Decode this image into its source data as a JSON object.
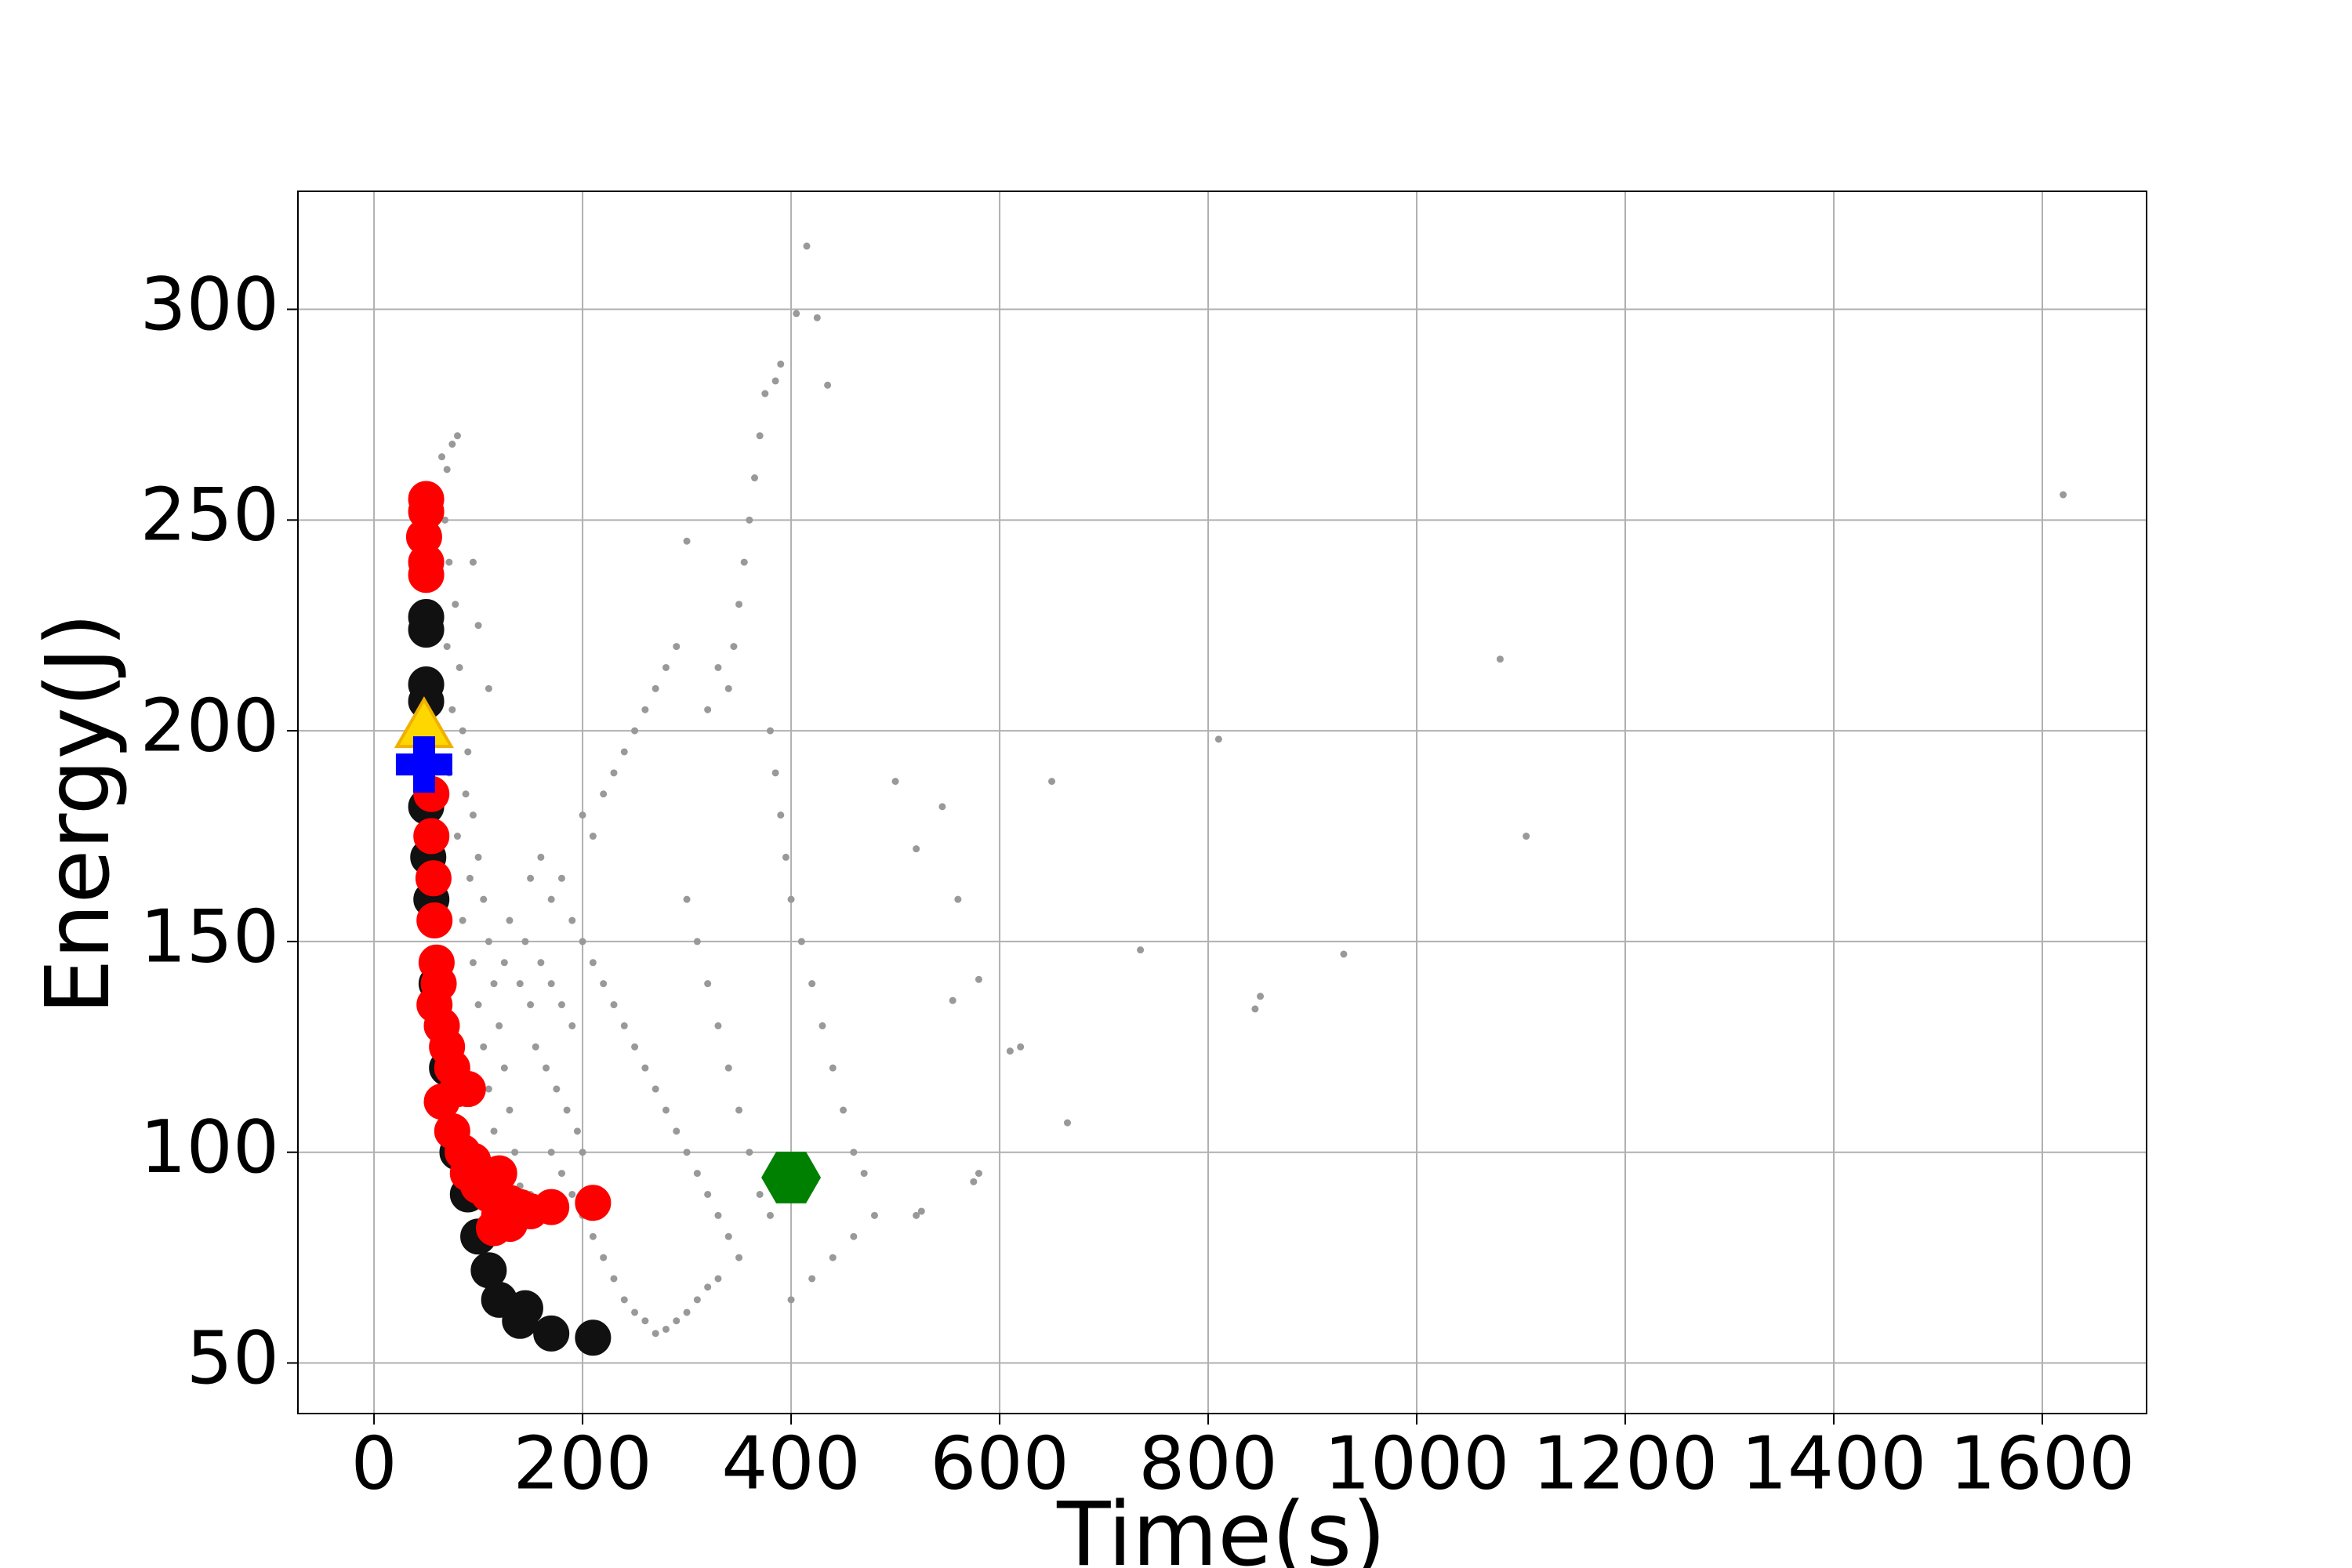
{
  "chart_data": {
    "type": "scatter",
    "xlabel": "Time(s)",
    "ylabel": "Energy(J)",
    "xlim": [
      -73,
      1700
    ],
    "ylim": [
      38,
      328
    ],
    "xticks": [
      0,
      200,
      400,
      600,
      800,
      1000,
      1200,
      1400,
      1600
    ],
    "yticks": [
      50,
      100,
      150,
      200,
      250,
      300
    ],
    "grid": true,
    "series": [
      {
        "color": "#999999",
        "marker": "dot",
        "x": [
          65,
          70,
          75,
          80,
          68,
          72,
          78,
          70,
          82,
          75,
          85,
          90,
          72,
          88,
          95,
          80,
          100,
          92,
          105,
          85,
          110,
          95,
          115,
          100,
          120,
          105,
          125,
          110,
          130,
          115,
          135,
          120,
          140,
          150,
          160,
          125,
          140,
          150,
          130,
          145,
          160,
          170,
          180,
          190,
          155,
          165,
          175,
          185,
          195,
          200,
          170,
          180,
          190,
          200,
          210,
          220,
          230,
          240,
          250,
          260,
          270,
          280,
          290,
          300,
          310,
          320,
          330,
          150,
          160,
          170,
          180,
          190,
          200,
          210,
          220,
          230,
          240,
          250,
          260,
          270,
          280,
          290,
          300,
          310,
          320,
          330,
          340,
          350,
          200,
          210,
          220,
          230,
          240,
          250,
          260,
          270,
          280,
          290,
          300,
          310,
          320,
          330,
          340,
          350,
          360,
          370,
          380,
          360,
          355,
          350,
          345,
          340,
          370,
          375,
          365,
          380,
          385,
          390,
          395,
          400,
          410,
          420,
          430,
          440,
          450,
          460,
          470,
          400,
          420,
          440,
          460,
          480,
          300,
          320,
          330,
          100,
          110,
          95,
          1620,
          1080,
          810,
          1105,
          650,
          735,
          930,
          850,
          845,
          620,
          610,
          665,
          575,
          580,
          520,
          525,
          555,
          580,
          545,
          520,
          500,
          560,
          415,
          405,
          425,
          390,
          385,
          435
        ],
        "values": [
          265,
          262,
          268,
          270,
          250,
          240,
          230,
          220,
          215,
          205,
          200,
          195,
          190,
          185,
          180,
          175,
          170,
          165,
          160,
          155,
          150,
          145,
          140,
          135,
          130,
          125,
          120,
          115,
          110,
          105,
          100,
          95,
          92,
          90,
          88,
          145,
          140,
          135,
          155,
          150,
          145,
          140,
          135,
          130,
          125,
          120,
          115,
          110,
          105,
          100,
          100,
          95,
          90,
          85,
          80,
          75,
          70,
          65,
          62,
          60,
          57,
          58,
          60,
          62,
          65,
          68,
          70,
          165,
          170,
          160,
          165,
          155,
          150,
          145,
          140,
          135,
          130,
          125,
          120,
          115,
          110,
          105,
          100,
          95,
          90,
          85,
          80,
          75,
          180,
          175,
          185,
          190,
          195,
          200,
          205,
          210,
          215,
          220,
          160,
          150,
          140,
          130,
          120,
          110,
          100,
          90,
          85,
          250,
          240,
          230,
          220,
          210,
          270,
          280,
          260,
          200,
          190,
          180,
          170,
          160,
          150,
          140,
          130,
          120,
          110,
          100,
          95,
          65,
          70,
          75,
          80,
          85,
          245,
          205,
          215,
          225,
          210,
          240,
          256,
          217,
          198,
          175,
          188,
          148,
          147,
          137,
          134,
          125,
          124,
          107,
          93,
          95,
          85,
          86,
          136,
          141,
          182,
          172,
          188,
          160,
          315,
          299,
          298,
          287,
          283,
          282
        ]
      },
      {
        "color": "#111111",
        "marker": "circle",
        "x": [
          50,
          50,
          50,
          50,
          50,
          52,
          55,
          60,
          70,
          80,
          90,
          100,
          110,
          120,
          140,
          145,
          170,
          210
        ],
        "values": [
          227,
          224,
          211,
          207,
          182,
          170,
          160,
          140,
          120,
          100,
          90,
          80,
          72,
          65,
          60,
          63,
          57,
          56
        ]
      },
      {
        "color": "#ff0000",
        "marker": "circle",
        "x": [
          50,
          50,
          48,
          50,
          50,
          55,
          55,
          57,
          58,
          60,
          62,
          58,
          65,
          70,
          75,
          65,
          80,
          90,
          75,
          85,
          95,
          90,
          100,
          120,
          110,
          130,
          120,
          140,
          150,
          170,
          210,
          115,
          130
        ],
        "values": [
          255,
          252,
          246,
          240,
          237,
          185,
          175,
          165,
          155,
          145,
          140,
          135,
          130,
          125,
          120,
          112,
          115,
          115,
          105,
          100,
          98,
          95,
          92,
          95,
          90,
          88,
          85,
          87,
          86,
          87,
          88,
          82,
          83
        ]
      },
      {
        "color": "#ffd700",
        "marker": "triangle",
        "x": [
          48
        ],
        "values": [
          200
        ]
      },
      {
        "color": "#0000ff",
        "marker": "plus",
        "x": [
          48
        ],
        "values": [
          192
        ]
      },
      {
        "color": "#008000",
        "marker": "hexagon",
        "x": [
          400
        ],
        "values": [
          94
        ]
      }
    ]
  }
}
